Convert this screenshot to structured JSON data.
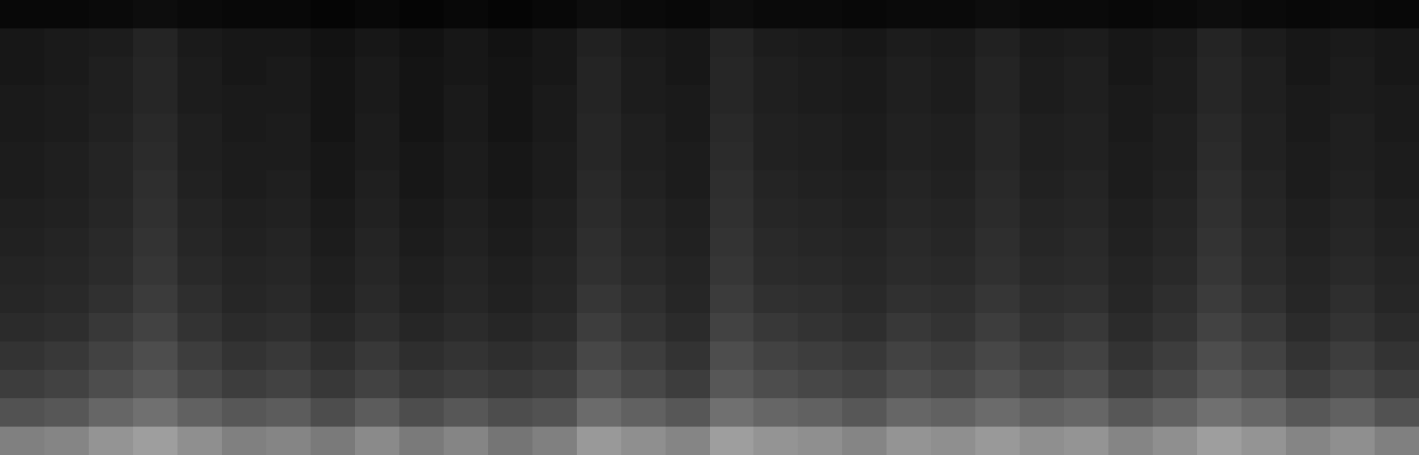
{
  "chart_data": {
    "type": "heatmap",
    "tick_labels": false,
    "zlim": [
      0,
      100
    ],
    "z": [
      [
        50,
        52,
        58,
        62,
        56,
        50,
        52,
        48,
        54,
        48,
        52,
        46,
        50,
        60,
        56,
        52,
        62,
        58,
        56,
        52,
        58,
        56,
        60,
        56,
        58,
        52,
        56,
        62,
        58,
        52,
        56,
        50
      ],
      [
        32,
        34,
        40,
        44,
        38,
        34,
        36,
        30,
        36,
        30,
        34,
        30,
        32,
        42,
        38,
        34,
        44,
        40,
        38,
        34,
        40,
        38,
        42,
        38,
        40,
        34,
        38,
        44,
        40,
        34,
        38,
        32
      ],
      [
        24,
        26,
        30,
        34,
        28,
        24,
        26,
        22,
        26,
        22,
        24,
        22,
        24,
        32,
        28,
        24,
        34,
        30,
        28,
        26,
        30,
        28,
        32,
        28,
        30,
        24,
        28,
        34,
        30,
        24,
        28,
        24
      ],
      [
        20,
        22,
        26,
        30,
        24,
        20,
        22,
        18,
        22,
        18,
        20,
        18,
        20,
        28,
        24,
        20,
        30,
        26,
        24,
        22,
        26,
        24,
        28,
        24,
        26,
        20,
        24,
        30,
        26,
        20,
        24,
        20
      ],
      [
        17,
        18,
        22,
        26,
        20,
        17,
        18,
        15,
        18,
        15,
        17,
        15,
        17,
        24,
        20,
        17,
        26,
        22,
        20,
        18,
        22,
        20,
        24,
        20,
        22,
        17,
        20,
        26,
        22,
        17,
        20,
        17
      ],
      [
        15,
        16,
        19,
        23,
        18,
        15,
        16,
        13,
        16,
        13,
        15,
        13,
        15,
        21,
        18,
        15,
        23,
        19,
        18,
        16,
        19,
        18,
        21,
        18,
        19,
        15,
        18,
        23,
        19,
        15,
        18,
        15
      ],
      [
        14,
        15,
        17,
        21,
        16,
        14,
        15,
        12,
        15,
        12,
        14,
        12,
        14,
        19,
        16,
        14,
        21,
        17,
        16,
        15,
        17,
        16,
        19,
        16,
        17,
        14,
        16,
        21,
        17,
        14,
        16,
        14
      ],
      [
        13,
        14,
        16,
        20,
        15,
        13,
        14,
        11,
        14,
        11,
        13,
        11,
        13,
        18,
        15,
        13,
        20,
        16,
        15,
        14,
        16,
        15,
        18,
        15,
        16,
        13,
        15,
        20,
        16,
        13,
        15,
        13
      ],
      [
        12,
        13,
        15,
        19,
        14,
        12,
        13,
        10,
        13,
        10,
        12,
        10,
        12,
        17,
        14,
        12,
        19,
        15,
        14,
        13,
        15,
        14,
        17,
        14,
        15,
        12,
        14,
        19,
        15,
        12,
        14,
        12
      ],
      [
        11,
        12,
        14,
        18,
        13,
        11,
        12,
        9,
        12,
        9,
        11,
        9,
        11,
        16,
        13,
        11,
        18,
        14,
        13,
        12,
        14,
        13,
        16,
        13,
        14,
        11,
        13,
        18,
        14,
        11,
        13,
        11
      ],
      [
        11,
        12,
        14,
        17,
        12,
        11,
        11,
        9,
        11,
        9,
        11,
        9,
        11,
        15,
        12,
        11,
        17,
        13,
        12,
        11,
        13,
        12,
        15,
        12,
        13,
        11,
        12,
        17,
        13,
        11,
        12,
        11
      ],
      [
        10,
        11,
        13,
        16,
        12,
        10,
        11,
        8,
        11,
        8,
        10,
        8,
        10,
        15,
        12,
        10,
        16,
        13,
        12,
        11,
        13,
        12,
        15,
        12,
        13,
        10,
        12,
        16,
        13,
        10,
        12,
        10
      ],
      [
        10,
        11,
        12,
        15,
        11,
        10,
        10,
        8,
        10,
        8,
        10,
        8,
        10,
        14,
        11,
        10,
        15,
        12,
        11,
        10,
        12,
        11,
        14,
        11,
        12,
        10,
        11,
        15,
        12,
        10,
        11,
        10
      ],
      [
        9,
        10,
        12,
        15,
        11,
        9,
        10,
        8,
        10,
        8,
        9,
        8,
        9,
        14,
        11,
        9,
        15,
        12,
        11,
        10,
        12,
        11,
        14,
        11,
        12,
        9,
        11,
        15,
        12,
        9,
        11,
        9
      ],
      [
        9,
        10,
        11,
        14,
        10,
        9,
        9,
        7,
        9,
        7,
        9,
        7,
        9,
        13,
        10,
        9,
        14,
        11,
        10,
        9,
        11,
        10,
        13,
        10,
        11,
        9,
        10,
        14,
        11,
        9,
        10,
        9
      ],
      [
        3,
        3,
        4,
        5,
        4,
        3,
        3,
        2,
        3,
        2,
        3,
        2,
        3,
        5,
        4,
        3,
        5,
        4,
        4,
        3,
        4,
        4,
        5,
        4,
        4,
        3,
        4,
        5,
        4,
        3,
        4,
        3
      ]
    ]
  }
}
